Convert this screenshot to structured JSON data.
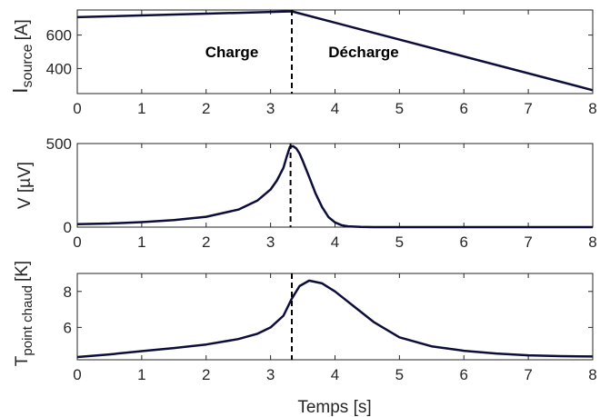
{
  "chart_data": [
    {
      "type": "line",
      "ylabel_main": "I",
      "ylabel_sub": "source",
      "ylabel_unit": "[A]",
      "xlim": [
        0,
        8
      ],
      "ylim": [
        250,
        750
      ],
      "xticks": [
        0,
        1,
        2,
        3,
        4,
        5,
        6,
        7,
        8
      ],
      "yticks": [
        400,
        600
      ],
      "x": [
        0,
        3.33,
        8
      ],
      "y": [
        707,
        742,
        270
      ],
      "marker_x": 3.33,
      "annotations": [
        "Charge",
        "Décharge"
      ]
    },
    {
      "type": "line",
      "ylabel": "V [µV]",
      "xlim": [
        0,
        8
      ],
      "ylim": [
        0,
        500
      ],
      "xticks": [
        0,
        1,
        2,
        3,
        4,
        5,
        6,
        7,
        8
      ],
      "yticks": [
        0,
        500
      ],
      "x": [
        0,
        0.5,
        1,
        1.5,
        2,
        2.5,
        2.8,
        3.0,
        3.1,
        3.2,
        3.25,
        3.3,
        3.35,
        3.4,
        3.45,
        3.5,
        3.6,
        3.7,
        3.8,
        3.9,
        4.0,
        4.1,
        4.2,
        4.4,
        4.6,
        5,
        6,
        7,
        8
      ],
      "y": [
        18,
        22,
        30,
        42,
        62,
        105,
        160,
        225,
        280,
        355,
        420,
        480,
        484,
        470,
        440,
        395,
        300,
        200,
        120,
        60,
        28,
        12,
        5,
        1,
        0,
        0,
        0,
        0,
        0
      ],
      "marker_x": 3.31
    },
    {
      "type": "line",
      "ylabel_main": "T",
      "ylabel_sub": "point chaud",
      "ylabel_unit": "[K]",
      "xlabel": "Temps [s]",
      "xlim": [
        0,
        8
      ],
      "ylim": [
        4.2,
        9
      ],
      "xticks": [
        0,
        1,
        2,
        3,
        4,
        5,
        6,
        7,
        8
      ],
      "yticks": [
        6,
        8
      ],
      "x": [
        0,
        0.5,
        1,
        1.5,
        2,
        2.5,
        2.8,
        3.0,
        3.2,
        3.33,
        3.45,
        3.6,
        3.8,
        4.0,
        4.3,
        4.6,
        5.0,
        5.5,
        6.0,
        6.5,
        7.0,
        7.5,
        8.0
      ],
      "y": [
        4.35,
        4.5,
        4.68,
        4.85,
        5.05,
        5.35,
        5.65,
        6.0,
        6.65,
        7.6,
        8.3,
        8.6,
        8.45,
        8.0,
        7.15,
        6.3,
        5.45,
        4.95,
        4.7,
        4.55,
        4.45,
        4.4,
        4.38
      ],
      "marker_x": 3.33
    }
  ]
}
